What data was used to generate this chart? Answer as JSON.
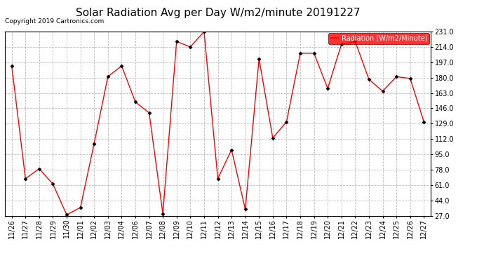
{
  "title": "Solar Radiation Avg per Day W/m2/minute 20191227",
  "copyright": "Copyright 2019 Cartronics.com",
  "legend_label": "Radiation (W/m2/Minute)",
  "dates": [
    "11/26",
    "11/27",
    "11/28",
    "11/29",
    "11/30",
    "12/01",
    "12/02",
    "12/03",
    "12/04",
    "12/06",
    "12/07",
    "12/08",
    "12/09",
    "12/10",
    "12/11",
    "12/12",
    "12/13",
    "12/14",
    "12/15",
    "12/16",
    "12/17",
    "12/18",
    "12/19",
    "12/20",
    "12/21",
    "12/22",
    "12/23",
    "12/24",
    "12/25",
    "12/26",
    "12/27"
  ],
  "values": [
    193,
    68,
    79,
    62,
    28,
    36,
    107,
    181,
    193,
    153,
    141,
    29,
    220,
    214,
    231,
    68,
    100,
    34,
    201,
    113,
    131,
    207,
    207,
    168,
    217,
    220,
    178,
    165,
    181,
    179,
    131
  ],
  "yticks": [
    27.0,
    44.0,
    61.0,
    78.0,
    95.0,
    112.0,
    129.0,
    146.0,
    163.0,
    180.0,
    197.0,
    214.0,
    231.0
  ],
  "ymin": 27.0,
  "ymax": 231.0,
  "line_color": "red",
  "marker_color": "black",
  "bg_color": "#ffffff",
  "grid_color": "#bbbbbb",
  "title_fontsize": 11,
  "copyright_fontsize": 6.5,
  "tick_fontsize": 7,
  "legend_bg": "red",
  "legend_fg": "white",
  "legend_fontsize": 7
}
